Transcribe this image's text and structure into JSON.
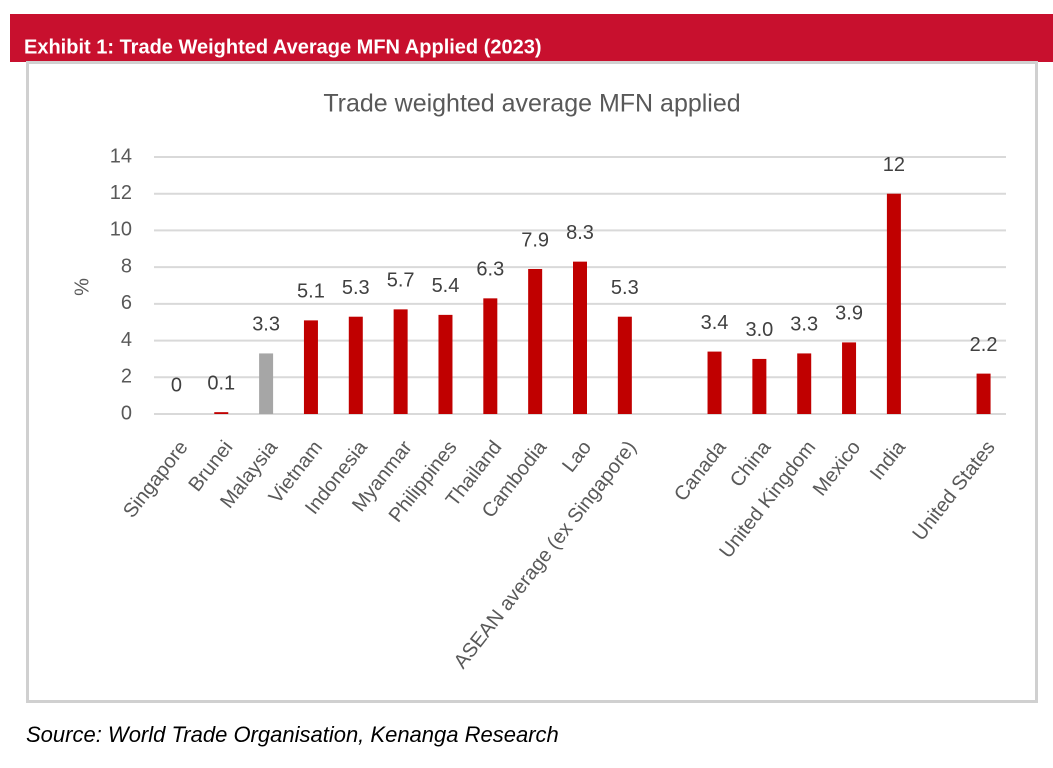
{
  "header": {
    "title": "Exhibit 1: Trade Weighted Average MFN Applied (2023)"
  },
  "source": "Source: World Trade Organisation, Kenanga Research",
  "chart_data": {
    "type": "bar",
    "title": "Trade weighted average MFN applied",
    "y_label": "%",
    "categories": [
      "Singapore",
      "Brunei",
      "Malaysia",
      "Vietnam",
      "Indonesia",
      "Myanmar",
      "Philippines",
      "Thailand",
      "Cambodia",
      "Lao",
      "ASEAN average (ex Singapore)",
      null,
      "Canada",
      "China",
      "United Kingdom",
      "Mexico",
      "India",
      null,
      "United States"
    ],
    "values": [
      0,
      0.1,
      3.3,
      5.1,
      5.3,
      5.7,
      5.4,
      6.3,
      7.9,
      8.3,
      5.3,
      null,
      3.4,
      3.0,
      3.3,
      3.9,
      12,
      null,
      2.2
    ],
    "value_labels": [
      "0",
      "0.1",
      "3.3",
      "5.1",
      "5.3",
      "5.7",
      "5.4",
      "6.3",
      "7.9",
      "8.3",
      "5.3",
      null,
      "3.4",
      "3.0",
      "3.3",
      "3.9",
      "12",
      null,
      "2.2"
    ],
    "colors": [
      "#c00000",
      "#c00000",
      "#a6a6a6",
      "#c00000",
      "#c00000",
      "#c00000",
      "#c00000",
      "#c00000",
      "#c00000",
      "#c00000",
      "#c00000",
      null,
      "#c00000",
      "#c00000",
      "#c00000",
      "#c00000",
      "#c00000",
      null,
      "#c00000"
    ],
    "ylim": [
      0,
      14
    ],
    "yticks": [
      0,
      2,
      4,
      6,
      8,
      10,
      12,
      14
    ],
    "grid": true
  }
}
